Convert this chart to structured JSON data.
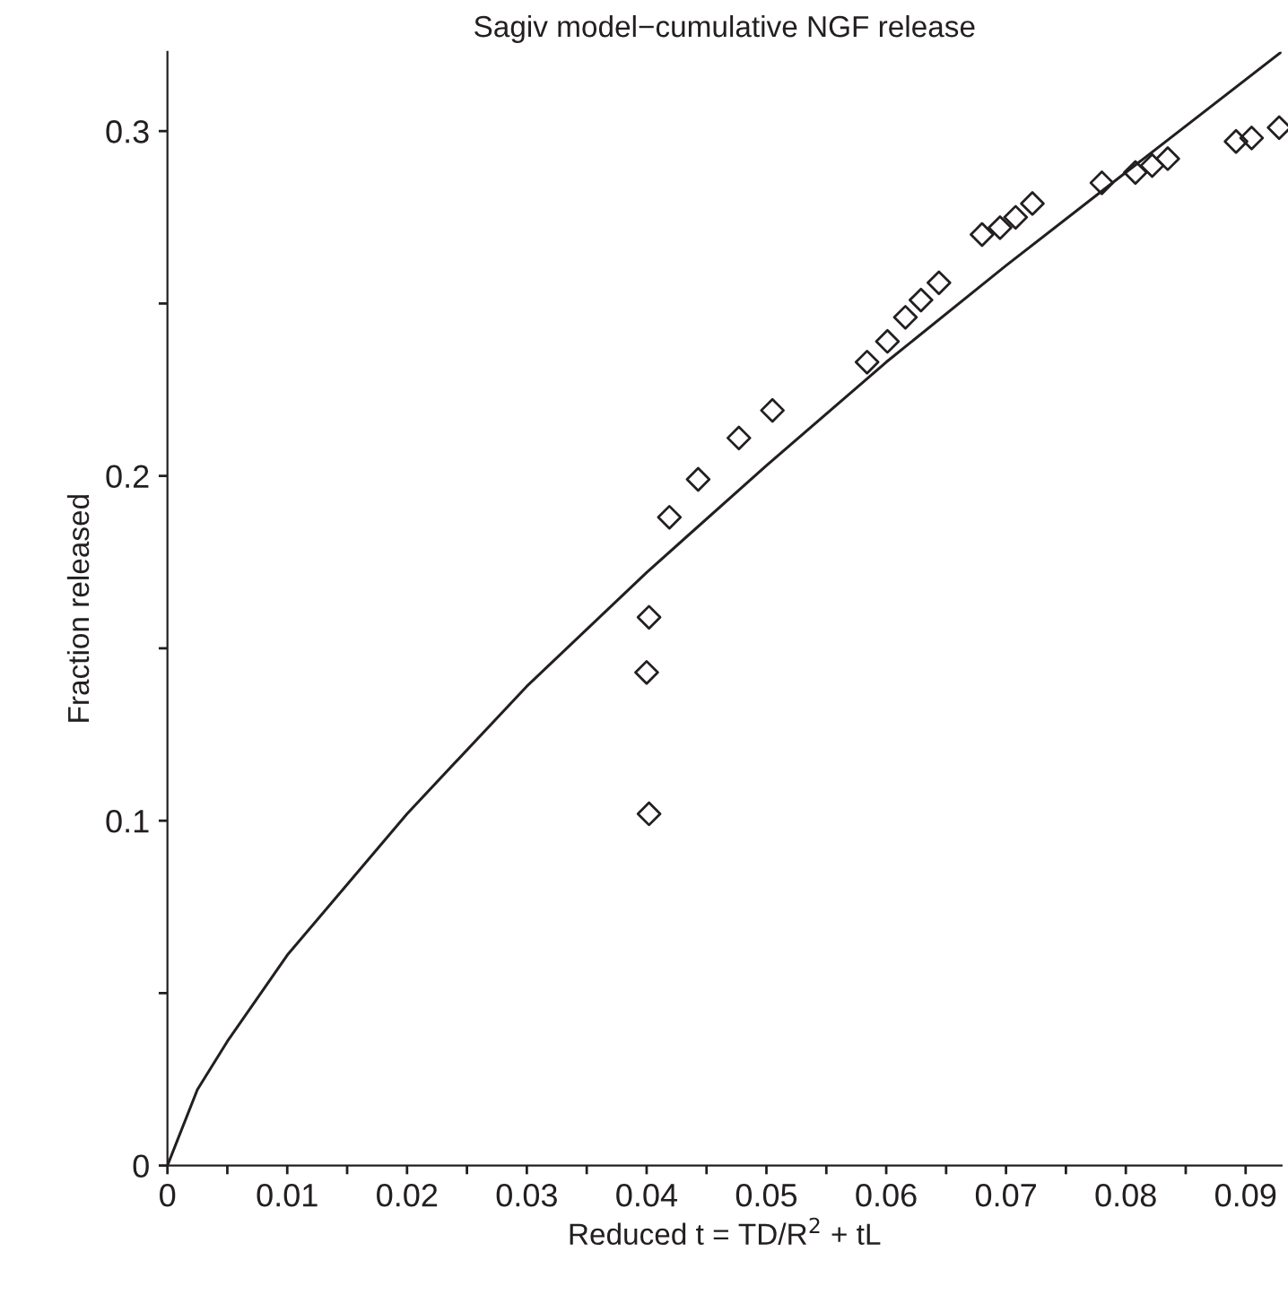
{
  "chart_data": {
    "type": "scatter",
    "title": "Sagiv model−cumulative NGF release",
    "xlabel": "Reduced t = TD/R$^{2}$ + tL",
    "ylabel": "Fraction released",
    "xlim": [
      0,
      0.093
    ],
    "ylim": [
      0,
      0.323
    ],
    "xticks": [
      0,
      {
        "value": 0.005,
        "label": null
      },
      0.01,
      {
        "value": 0.015,
        "label": null
      },
      0.02,
      {
        "value": 0.025,
        "label": null
      },
      0.03,
      {
        "value": 0.035,
        "label": null
      },
      0.04,
      {
        "value": 0.045,
        "label": null
      },
      0.05,
      {
        "value": 0.055,
        "label": null
      },
      0.06,
      {
        "value": 0.065,
        "label": null
      },
      0.07,
      {
        "value": 0.075,
        "label": null
      },
      0.08,
      {
        "value": 0.085,
        "label": null
      },
      0.09
    ],
    "yticks": [
      0,
      {
        "value": 0.05,
        "label": null
      },
      0.1,
      {
        "value": 0.15,
        "label": null
      },
      0.2,
      {
        "value": 0.25,
        "label": null
      },
      0.3
    ],
    "grid": false,
    "legend": false,
    "series": [
      {
        "marker": "diamond",
        "color": "#231f20",
        "x": [
          0.0402,
          0.04,
          0.0402,
          0.0419,
          0.0443,
          0.0477,
          0.0505,
          0.0584,
          0.0601,
          0.0616,
          0.0629,
          0.0644,
          0.068,
          0.0695,
          0.0708,
          0.0722,
          0.078,
          0.0808,
          0.0822,
          0.0835,
          0.0892,
          0.0905,
          0.0928
        ],
        "values": [
          0.102,
          0.143,
          0.159,
          0.188,
          0.199,
          0.211,
          0.219,
          0.233,
          0.239,
          0.246,
          0.251,
          0.256,
          0.27,
          0.272,
          0.275,
          0.279,
          0.285,
          0.288,
          0.29,
          0.292,
          0.297,
          0.298,
          0.301
        ]
      },
      {
        "type": "line",
        "marker": "none",
        "line_style": "solid",
        "color": "#231f20",
        "x": [
          0,
          0.0025,
          0.005,
          0.01,
          0.02,
          0.03,
          0.04,
          0.05,
          0.06,
          0.07,
          0.08,
          0.093
        ],
        "values": [
          0,
          0.022,
          0.036,
          0.061,
          0.102,
          0.139,
          0.172,
          0.203,
          0.233,
          0.261,
          0.288,
          0.323
        ]
      }
    ]
  }
}
